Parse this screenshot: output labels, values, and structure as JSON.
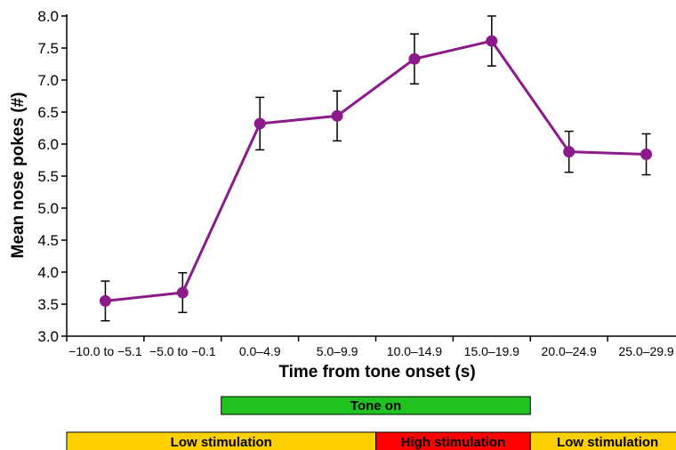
{
  "chart_data": {
    "type": "line",
    "title": "",
    "xlabel": "Time from tone onset (s)",
    "ylabel": "Mean nose pokes (#)",
    "ylim": [
      3.0,
      8.0
    ],
    "yticks": [
      "3.0",
      "3.5",
      "4.0",
      "4.5",
      "5.0",
      "5.5",
      "6.0",
      "6.5",
      "7.0",
      "7.5",
      "8.0"
    ],
    "categories": [
      "−10.0 to −5.1",
      "−5.0 to −0.1",
      "0.0–4.9",
      "5.0–9.9",
      "10.0–14.9",
      "15.0–19.9",
      "20.0–24.9",
      "25.0–29.9"
    ],
    "series": [
      {
        "values": [
          3.55,
          3.68,
          6.32,
          6.44,
          7.33,
          7.61,
          5.88,
          5.84
        ],
        "errors": [
          0.31,
          0.31,
          0.41,
          0.39,
          0.39,
          0.39,
          0.32,
          0.32
        ],
        "color": "#8B1A8B"
      }
    ],
    "grid": false,
    "annotations": {
      "tone_band": {
        "label": "Tone on",
        "from_category": 2,
        "to_category": 5,
        "color": "#1FC21F"
      },
      "stimulation_bands": [
        {
          "label": "Low stimulation",
          "from_category": 0,
          "to_category": 3,
          "color": "#FFD000"
        },
        {
          "label": "High stimulation",
          "from_category": 4,
          "to_category": 5,
          "color": "#FF0000"
        },
        {
          "label": "Low stimulation",
          "from_category": 6,
          "to_category": 7,
          "color": "#FFD000"
        }
      ]
    }
  }
}
